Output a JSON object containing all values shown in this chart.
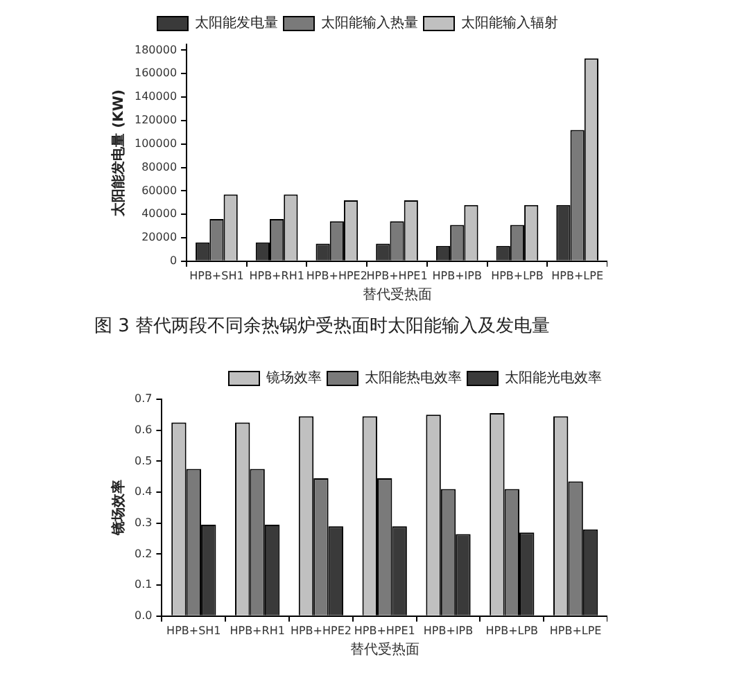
{
  "chart_data": [
    {
      "type": "bar",
      "xlabel": "替代受热面",
      "ylabel": "太阳能发电量 (KW)",
      "categories": [
        "HPB+SH1",
        "HPB+RH1",
        "HPB+HPE2",
        "HPB+HPE1",
        "HPB+IPB",
        "HPB+LPB",
        "HPB+LPE"
      ],
      "series": [
        {
          "name": "太阳能发电量",
          "color": "#3a3a3a",
          "values": [
            16000,
            16000,
            15000,
            15000,
            13000,
            13000,
            48000
          ]
        },
        {
          "name": "太阳能输入热量",
          "color": "#7a7a7a",
          "values": [
            36000,
            36000,
            34000,
            34000,
            31000,
            31000,
            112000
          ]
        },
        {
          "name": "太阳能输入辐射",
          "color": "#c0c0c0",
          "values": [
            57000,
            57000,
            52000,
            52000,
            48000,
            48000,
            173000
          ]
        }
      ],
      "ylim": [
        0,
        185000
      ],
      "yticks": [
        0,
        20000,
        40000,
        60000,
        80000,
        100000,
        120000,
        140000,
        160000,
        180000
      ],
      "legend": "top",
      "annotations": [
        "图 3 替代两段不同余热锅炉受热面时太阳能输入及发电量"
      ]
    },
    {
      "type": "bar",
      "xlabel": "替代受热面",
      "ylabel": "镜场效率",
      "categories": [
        "HPB+SH1",
        "HPB+RH1",
        "HPB+HPE2",
        "HPB+HPE1",
        "HPB+IPB",
        "HPB+LPB",
        "HPB+LPE"
      ],
      "series": [
        {
          "name": "镜场效率",
          "color": "#c0c0c0",
          "values": [
            0.625,
            0.625,
            0.645,
            0.645,
            0.65,
            0.655,
            0.645
          ]
        },
        {
          "name": "太阳能热电效率",
          "color": "#7a7a7a",
          "values": [
            0.475,
            0.475,
            0.445,
            0.445,
            0.41,
            0.41,
            0.435
          ]
        },
        {
          "name": "太阳能光电效率",
          "color": "#3a3a3a",
          "values": [
            0.295,
            0.295,
            0.29,
            0.29,
            0.265,
            0.27,
            0.28
          ]
        }
      ],
      "ylim": [
        0,
        0.7
      ],
      "yticks": [
        {
          "value": 0,
          "label": "0.0"
        },
        {
          "value": 0.1,
          "label": "0.1"
        },
        {
          "value": 0.2,
          "label": "0.2"
        },
        {
          "value": 0.3,
          "label": "0.3"
        },
        {
          "value": 0.4,
          "label": "0.4"
        },
        {
          "value": 0.5,
          "label": "0.5"
        },
        {
          "value": 0.6,
          "label": "0.6"
        },
        {
          "value": 0.7,
          "label": "0.7"
        }
      ],
      "legend": "top right"
    }
  ]
}
